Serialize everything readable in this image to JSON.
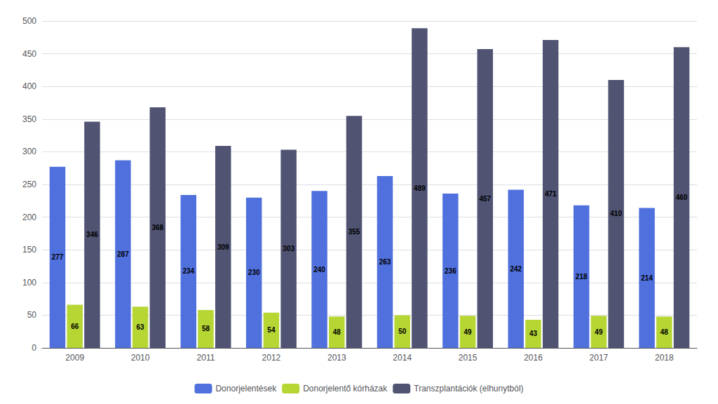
{
  "chart_data": {
    "type": "bar",
    "categories": [
      "2009",
      "2010",
      "2011",
      "2012",
      "2013",
      "2014",
      "2015",
      "2016",
      "2017",
      "2018"
    ],
    "series": [
      {
        "name": "Donorjelentések",
        "values": [
          277,
          287,
          234,
          230,
          240,
          263,
          236,
          242,
          218,
          214
        ]
      },
      {
        "name": "Donorjelentő kórházak",
        "values": [
          66,
          63,
          58,
          54,
          48,
          50,
          49,
          43,
          49,
          48
        ]
      },
      {
        "name": "Transzplantációk (elhunytból)",
        "values": [
          346,
          368,
          309,
          303,
          355,
          489,
          457,
          471,
          410,
          460
        ]
      }
    ],
    "ylim": [
      0,
      500
    ],
    "yticks": [
      0,
      50,
      100,
      150,
      200,
      250,
      300,
      350,
      400,
      450,
      500
    ],
    "grid": true,
    "legend": "bottom",
    "data_labels": true
  }
}
